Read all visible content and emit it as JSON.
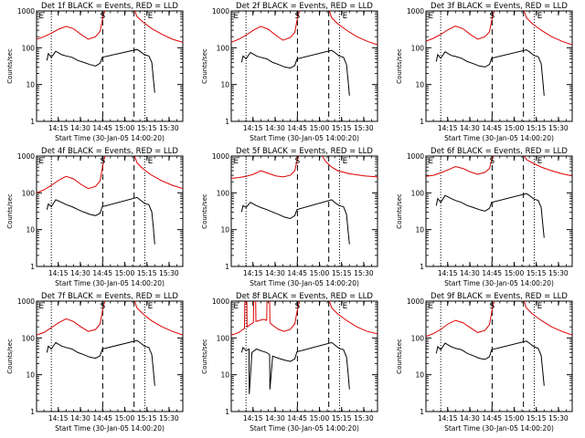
{
  "chart_data": {
    "type": "line",
    "ylabel": "Counts/sec",
    "xlabel": "Start Time (30-Jan-05 14:00:20)",
    "x_tick_labels": [
      "14:15",
      "14:30",
      "14:45",
      "15:00",
      "15:15",
      "15:30"
    ],
    "x_tick_minutes": [
      14.67,
      29.67,
      44.67,
      59.67,
      74.67,
      89.67
    ],
    "xlim_minutes": [
      0,
      99
    ],
    "y_scale": "log",
    "ylim": [
      1,
      1000
    ],
    "y_tick_labels": [
      "1",
      "10",
      "100",
      "1000"
    ],
    "y_tick_values": [
      1,
      10,
      100,
      1000
    ],
    "colors": {
      "events": "#000000",
      "lld": "#dd0000",
      "axes": "#000000"
    },
    "markers": {
      "E1": {
        "label": "E",
        "minute": 1.5
      },
      "S": {
        "label": "S",
        "minute": 44.8
      },
      "E2": {
        "label": "E",
        "minute": 77.0
      }
    },
    "dotted_lines_minutes": [
      10.0,
      73.3
    ],
    "dashed_lines_minutes": [
      44.8,
      66.0
    ],
    "panels": [
      {
        "title": "Det 1f BLACK = Events, RED = LLD",
        "lld": {
          "x": [
            0,
            5,
            10,
            15,
            20,
            25,
            30,
            35,
            40,
            43,
            45,
            46.5,
            66,
            68,
            72,
            78,
            85,
            92,
            99
          ],
          "y": [
            170,
            200,
            250,
            320,
            380,
            330,
            230,
            170,
            200,
            280,
            700,
            1100,
            1100,
            700,
            500,
            330,
            230,
            170,
            140
          ]
        },
        "events": {
          "x": [
            7,
            8,
            10,
            13,
            17,
            20,
            24,
            28,
            32,
            36,
            40,
            43,
            44.5,
            68,
            70,
            73,
            76,
            78,
            79,
            80
          ],
          "y": [
            45,
            70,
            55,
            80,
            65,
            60,
            55,
            45,
            40,
            35,
            32,
            38,
            55,
            90,
            80,
            65,
            60,
            40,
            15,
            6
          ]
        }
      },
      {
        "title": "Det 2f BLACK = Events, RED = LLD",
        "lld": {
          "x": [
            0,
            5,
            10,
            15,
            20,
            25,
            30,
            35,
            40,
            43,
            45,
            46.5,
            66,
            68,
            72,
            78,
            85,
            92,
            99
          ],
          "y": [
            140,
            170,
            220,
            300,
            380,
            320,
            220,
            160,
            190,
            260,
            700,
            1100,
            1100,
            650,
            450,
            300,
            200,
            150,
            120
          ]
        },
        "events": {
          "x": [
            7,
            8,
            10,
            13,
            17,
            20,
            24,
            28,
            32,
            36,
            40,
            43,
            44.5,
            68,
            70,
            73,
            76,
            78,
            79,
            80
          ],
          "y": [
            40,
            60,
            50,
            75,
            60,
            55,
            50,
            40,
            35,
            30,
            28,
            33,
            50,
            85,
            75,
            60,
            55,
            35,
            14,
            5
          ]
        }
      },
      {
        "title": "Det 3f BLACK = Events, RED = LLD",
        "lld": {
          "x": [
            0,
            5,
            10,
            15,
            20,
            25,
            30,
            35,
            40,
            43,
            45,
            46.5,
            66,
            68,
            72,
            78,
            85,
            92,
            99
          ],
          "y": [
            150,
            180,
            230,
            310,
            390,
            330,
            230,
            170,
            200,
            270,
            700,
            1100,
            1100,
            650,
            450,
            300,
            200,
            150,
            120
          ]
        },
        "events": {
          "x": [
            7,
            8,
            10,
            13,
            17,
            20,
            24,
            28,
            32,
            36,
            40,
            43,
            44.5,
            68,
            70,
            73,
            76,
            78,
            79,
            80
          ],
          "y": [
            42,
            65,
            52,
            78,
            62,
            58,
            52,
            42,
            37,
            32,
            30,
            35,
            52,
            88,
            78,
            62,
            57,
            37,
            14,
            5
          ]
        }
      },
      {
        "title": "Det 4f BLACK = Events, RED = LLD",
        "lld": {
          "x": [
            0,
            5,
            10,
            15,
            20,
            25,
            30,
            35,
            40,
            43,
            45,
            46.5,
            66,
            68,
            72,
            78,
            85,
            92,
            99
          ],
          "y": [
            100,
            120,
            160,
            220,
            280,
            240,
            170,
            130,
            150,
            210,
            600,
            1100,
            1100,
            650,
            450,
            300,
            210,
            160,
            130
          ]
        },
        "events": {
          "x": [
            7,
            8,
            10,
            13,
            17,
            20,
            24,
            28,
            32,
            36,
            40,
            43,
            44.5,
            68,
            70,
            73,
            76,
            78,
            79,
            80
          ],
          "y": [
            35,
            50,
            42,
            65,
            55,
            48,
            42,
            35,
            30,
            26,
            24,
            28,
            42,
            75,
            65,
            52,
            48,
            30,
            12,
            4
          ]
        }
      },
      {
        "title": "Det 5f BLACK = Events, RED = LLD",
        "lld": {
          "x": [
            0,
            5,
            10,
            15,
            20,
            25,
            30,
            35,
            40,
            43,
            45,
            46.5,
            59,
            61,
            64,
            68,
            72,
            80,
            90,
            99
          ],
          "y": [
            250,
            260,
            280,
            320,
            400,
            340,
            290,
            270,
            300,
            400,
            900,
            1100,
            1100,
            1100,
            700,
            500,
            400,
            330,
            290,
            270
          ]
        },
        "events": {
          "x": [
            7,
            8,
            10,
            13,
            17,
            20,
            24,
            28,
            32,
            36,
            40,
            43,
            44.5,
            68,
            70,
            73,
            76,
            78,
            79,
            80
          ],
          "y": [
            30,
            45,
            40,
            55,
            45,
            40,
            35,
            30,
            26,
            22,
            20,
            24,
            35,
            65,
            55,
            45,
            42,
            26,
            10,
            4
          ]
        }
      },
      {
        "title": "Det 6f BLACK = Events, RED = LLD",
        "lld": {
          "x": [
            0,
            5,
            10,
            15,
            20,
            25,
            30,
            35,
            40,
            43,
            45,
            46.5,
            66,
            68,
            72,
            78,
            85,
            92,
            99
          ],
          "y": [
            280,
            300,
            350,
            420,
            520,
            460,
            370,
            320,
            360,
            460,
            900,
            1100,
            1100,
            800,
            650,
            500,
            400,
            330,
            290
          ]
        },
        "events": {
          "x": [
            7,
            8,
            10,
            13,
            17,
            20,
            24,
            28,
            32,
            36,
            40,
            43,
            44.5,
            68,
            70,
            73,
            76,
            78,
            79,
            80
          ],
          "y": [
            45,
            70,
            55,
            85,
            70,
            62,
            55,
            45,
            40,
            35,
            32,
            38,
            55,
            95,
            85,
            68,
            62,
            40,
            15,
            6
          ]
        }
      },
      {
        "title": "Det 7f BLACK = Events, RED = LLD",
        "lld": {
          "x": [
            0,
            5,
            10,
            15,
            20,
            25,
            30,
            35,
            40,
            43,
            45,
            46.5,
            66,
            68,
            72,
            78,
            85,
            92,
            99
          ],
          "y": [
            120,
            140,
            190,
            260,
            330,
            280,
            200,
            150,
            170,
            240,
            650,
            1100,
            1100,
            650,
            450,
            290,
            200,
            150,
            120
          ]
        },
        "events": {
          "x": [
            7,
            8,
            10,
            13,
            17,
            20,
            24,
            28,
            32,
            36,
            40,
            43,
            44.5,
            68,
            70,
            73,
            76,
            78,
            79,
            80
          ],
          "y": [
            40,
            60,
            50,
            75,
            60,
            55,
            50,
            40,
            35,
            30,
            28,
            33,
            50,
            85,
            75,
            60,
            55,
            35,
            14,
            5
          ]
        }
      },
      {
        "title": "Det 8f BLACK = Events, RED = LLD",
        "lld": {
          "x": [
            0,
            3,
            5,
            7,
            9,
            9.2,
            10.5,
            10.7,
            13,
            15,
            15.2,
            16.5,
            16.7,
            19,
            22,
            24,
            24.2,
            26,
            26.2,
            28,
            32,
            36,
            40,
            43,
            45,
            46.5,
            66,
            68,
            72,
            78,
            85,
            92,
            99
          ],
          "y": [
            120,
            130,
            140,
            160,
            180,
            1100,
            1100,
            200,
            230,
            260,
            1100,
            1100,
            280,
            300,
            320,
            300,
            1100,
            1100,
            260,
            220,
            170,
            150,
            170,
            240,
            650,
            1100,
            1100,
            650,
            450,
            300,
            200,
            150,
            130
          ]
        },
        "events": {
          "x": [
            7,
            8,
            10,
            12,
            12.2,
            14,
            17,
            20,
            24,
            26,
            26.2,
            28,
            32,
            36,
            40,
            43,
            44.5,
            68,
            70,
            73,
            76,
            78,
            79,
            80
          ],
          "y": [
            40,
            55,
            45,
            50,
            3,
            40,
            50,
            45,
            40,
            35,
            4,
            32,
            28,
            25,
            23,
            27,
            42,
            75,
            65,
            52,
            48,
            30,
            12,
            4
          ]
        }
      },
      {
        "title": "Det 9f BLACK = Events, RED = LLD",
        "lld": {
          "x": [
            0,
            5,
            10,
            15,
            20,
            25,
            30,
            35,
            40,
            43,
            45,
            46.5,
            66,
            68,
            72,
            78,
            85,
            92,
            99
          ],
          "y": [
            110,
            130,
            170,
            240,
            300,
            260,
            190,
            140,
            160,
            230,
            650,
            1100,
            1100,
            650,
            450,
            300,
            200,
            150,
            120
          ]
        },
        "events": {
          "x": [
            7,
            8,
            10,
            13,
            17,
            20,
            24,
            28,
            32,
            36,
            40,
            43,
            44.5,
            68,
            70,
            73,
            76,
            78,
            79,
            80
          ],
          "y": [
            38,
            58,
            48,
            72,
            58,
            52,
            48,
            38,
            33,
            28,
            26,
            31,
            48,
            82,
            72,
            58,
            52,
            33,
            13,
            5
          ]
        }
      }
    ]
  }
}
